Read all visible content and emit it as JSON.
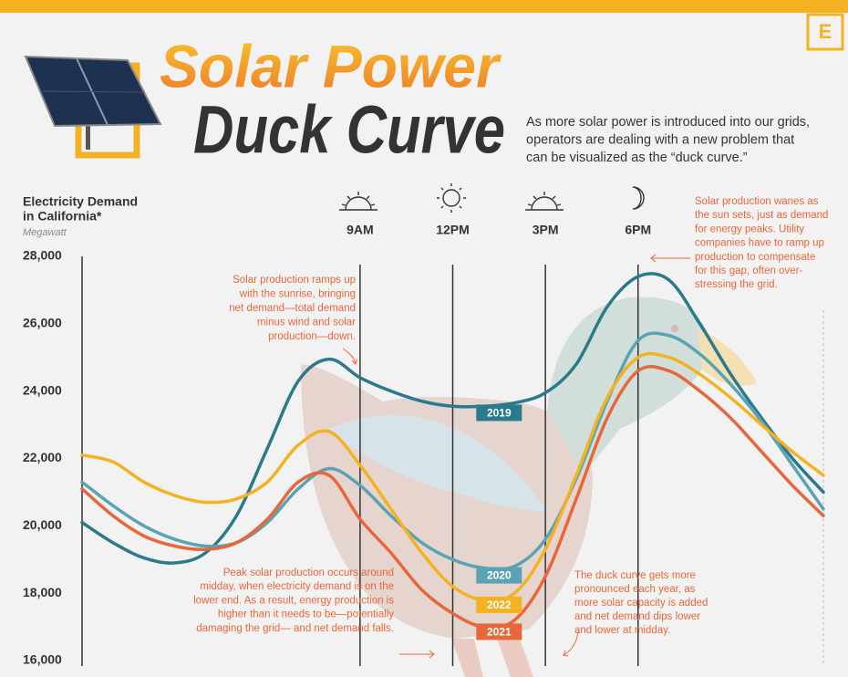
{
  "header": {
    "logo": "E",
    "title_line1": "Solar Power",
    "title_line2": "Duck Curve",
    "description": [
      "As more solar power is introduced into our grids,",
      "operators are dealing with a new problem that",
      "can be visualized as the “duck curve.”"
    ]
  },
  "chart_data": {
    "type": "line",
    "y_label": [
      "Electricity Demand",
      "in California*"
    ],
    "y_unit": "Megawatt",
    "x": [
      0,
      1,
      2,
      3,
      4,
      5,
      6,
      7,
      8,
      9,
      10,
      11,
      12,
      13,
      14,
      15,
      16,
      17,
      18,
      19,
      20,
      21,
      22,
      23,
      24
    ],
    "xlim": [
      0,
      24
    ],
    "xticks": [
      {
        "value": 9,
        "label": "9AM"
      },
      {
        "value": 12,
        "label": "12PM"
      },
      {
        "value": 15,
        "label": "3PM"
      },
      {
        "value": 18,
        "label": "6PM"
      }
    ],
    "ylim": [
      16000,
      28000
    ],
    "yticks": [
      {
        "value": 16000,
        "label": "16,000"
      },
      {
        "value": 18000,
        "label": "18,000"
      },
      {
        "value": 20000,
        "label": "20,000"
      },
      {
        "value": 22000,
        "label": "22,000"
      },
      {
        "value": 24000,
        "label": "24,000"
      },
      {
        "value": 26000,
        "label": "26,000"
      },
      {
        "value": 28000,
        "label": "28,000"
      }
    ],
    "grid": false,
    "series": [
      {
        "name": "2019",
        "color": "#2a7a8c",
        "values": [
          20100,
          19500,
          19050,
          18900,
          19200,
          20300,
          22300,
          24300,
          24950,
          24400,
          24000,
          23700,
          23550,
          23550,
          23650,
          23950,
          24800,
          26500,
          27400,
          27300,
          26000,
          24500,
          23200,
          22000,
          21000
        ]
      },
      {
        "name": "2020",
        "color": "#5aa3b5",
        "values": [
          21300,
          20600,
          20000,
          19600,
          19400,
          19500,
          20100,
          21100,
          21700,
          21200,
          20300,
          19500,
          19000,
          18750,
          18800,
          19600,
          21400,
          23700,
          25500,
          25650,
          25100,
          24200,
          23100,
          21800,
          20500
        ]
      },
      {
        "name": "2022",
        "color": "#f4b223",
        "values": [
          22100,
          21900,
          21300,
          20900,
          20700,
          20800,
          21300,
          22400,
          22800,
          21800,
          20500,
          19200,
          18200,
          17800,
          18000,
          19300,
          21500,
          23800,
          25000,
          25000,
          24500,
          23800,
          23000,
          22200,
          21500
        ]
      },
      {
        "name": "2021",
        "color": "#e8673a",
        "values": [
          21100,
          20300,
          19700,
          19400,
          19300,
          19500,
          20200,
          21300,
          21500,
          20200,
          19200,
          18100,
          17400,
          17000,
          17200,
          18500,
          20800,
          23200,
          24600,
          24600,
          24000,
          23200,
          22200,
          21200,
          20300
        ]
      }
    ],
    "annotations": [
      [
        "Solar production ramps up",
        "with the sunrise, bringing",
        "net demand—total demand",
        "minus wind and solar",
        "production—down."
      ],
      [
        "Solar production wanes as",
        "the sun sets, just as demand",
        "for energy peaks. Utility",
        "companies have to ramp up",
        "production to compensate",
        "for this gap, often over-",
        "stressing the grid."
      ],
      [
        "Peak solar production occurs around",
        "midday, when electricity demand is on the",
        "lower end. As a result, energy production is",
        "higher than it needs to be—potentially",
        "damaging the grid— and net demand falls."
      ],
      [
        "The duck curve gets more",
        "pronounced each year, as",
        "more solar capacity is added",
        "and net demand dips lower",
        "and lower at midday."
      ]
    ]
  }
}
